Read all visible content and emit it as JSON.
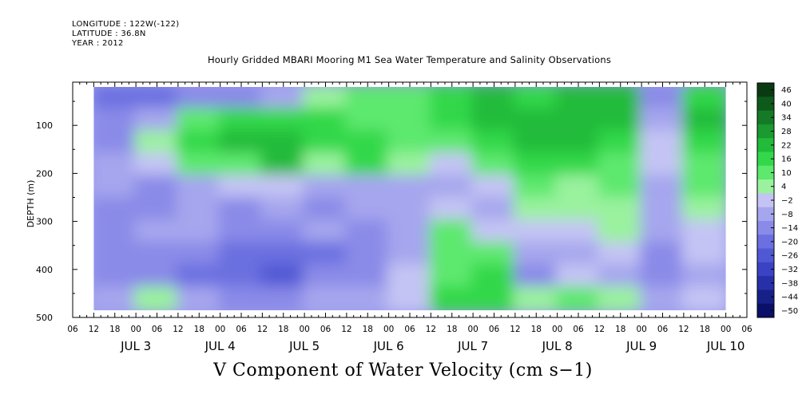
{
  "header": {
    "longitude": "LONGITUDE : 122W(-122)",
    "latitude": "LATITUDE : 36.8N",
    "year": "YEAR : 2012"
  },
  "chart_data": {
    "type": "heatmap",
    "title": "Hourly Gridded MBARI Mooring M1 Sea Water Temperature and Salinity Observations",
    "variable_label": "V Component of Water Velocity (cm s−1)",
    "ylabel": "DEPTH (m)",
    "ylim": [
      500,
      10
    ],
    "y_reversed": true,
    "y_ticks": [
      100,
      200,
      300,
      400,
      500
    ],
    "x_hour_ticks": [
      "06",
      "12",
      "18",
      "00",
      "06",
      "12",
      "18",
      "00",
      "06",
      "12",
      "18",
      "00",
      "06",
      "12",
      "18",
      "00",
      "06",
      "12",
      "18",
      "00",
      "06",
      "12",
      "18",
      "00",
      "06",
      "12",
      "18",
      "00",
      "06",
      "12",
      "18",
      "00",
      "06"
    ],
    "x_day_labels": [
      "JUL  3",
      "JUL  4",
      "JUL  5",
      "JUL  6",
      "JUL  7",
      "JUL  8",
      "JUL  9",
      "JUL 10"
    ],
    "x_range_hours": [
      0,
      192
    ],
    "data_start_hour": 6,
    "data_end_hour": 186,
    "data_depth_range": [
      20,
      485
    ],
    "colorbar": {
      "levels": [
        "46",
        "40",
        "34",
        "28",
        "22",
        "16",
        "10",
        "4",
        "−2",
        "−8",
        "−14",
        "−20",
        "−26",
        "−32",
        "−38",
        "−44",
        "−50"
      ],
      "colors": [
        "#0a3a12",
        "#0e5a1c",
        "#147a26",
        "#1a9a30",
        "#22bb3a",
        "#33d84a",
        "#5de86e",
        "#9af29e",
        "#c4c4f4",
        "#a6a6ee",
        "#8a8ae8",
        "#6b6fe0",
        "#5158d4",
        "#3a43c4",
        "#2730a8",
        "#172088",
        "#0a1068"
      ]
    },
    "cells": [
      {
        "t": 0,
        "v": [
          -20,
          -15,
          -16,
          -10,
          -12,
          -14,
          -15,
          -14,
          -16,
          -12
        ]
      },
      {
        "t": 12,
        "v": [
          -22,
          -12,
          4,
          -6,
          -18,
          -16,
          -8,
          -14,
          -18,
          2
        ]
      },
      {
        "t": 24,
        "v": [
          -18,
          10,
          12,
          6,
          -10,
          -12,
          -10,
          -18,
          -20,
          -12
        ]
      },
      {
        "t": 36,
        "v": [
          -16,
          14,
          18,
          10,
          -6,
          -14,
          -16,
          -22,
          -24,
          -18
        ]
      },
      {
        "t": 48,
        "v": [
          -10,
          16,
          22,
          18,
          -4,
          -10,
          -18,
          -24,
          -26,
          -16
        ]
      },
      {
        "t": 60,
        "v": [
          2,
          12,
          14,
          4,
          -10,
          -14,
          -12,
          -20,
          -18,
          -10
        ]
      },
      {
        "t": 72,
        "v": [
          6,
          10,
          16,
          12,
          -8,
          -12,
          -14,
          -16,
          -14,
          -8
        ]
      },
      {
        "t": 84,
        "v": [
          8,
          6,
          10,
          4,
          -12,
          -12,
          -10,
          -8,
          -6,
          -4
        ]
      },
      {
        "t": 96,
        "v": [
          14,
          16,
          8,
          -4,
          -10,
          -4,
          6,
          8,
          10,
          12
        ]
      },
      {
        "t": 108,
        "v": [
          18,
          20,
          14,
          8,
          -2,
          -8,
          -4,
          6,
          12,
          14
        ]
      },
      {
        "t": 120,
        "v": [
          16,
          18,
          20,
          16,
          10,
          4,
          -2,
          -12,
          -14,
          4
        ]
      },
      {
        "t": 132,
        "v": [
          20,
          22,
          18,
          12,
          4,
          0,
          -6,
          -10,
          -6,
          8
        ]
      },
      {
        "t": 144,
        "v": [
          18,
          20,
          16,
          10,
          6,
          2,
          0,
          -4,
          -8,
          2
        ]
      },
      {
        "t": 156,
        "v": [
          -14,
          -8,
          -4,
          -6,
          -10,
          -12,
          -12,
          -14,
          -14,
          -10
        ]
      },
      {
        "t": 168,
        "v": [
          16,
          18,
          14,
          10,
          6,
          2,
          -2,
          -6,
          -8,
          -2
        ]
      }
    ]
  }
}
